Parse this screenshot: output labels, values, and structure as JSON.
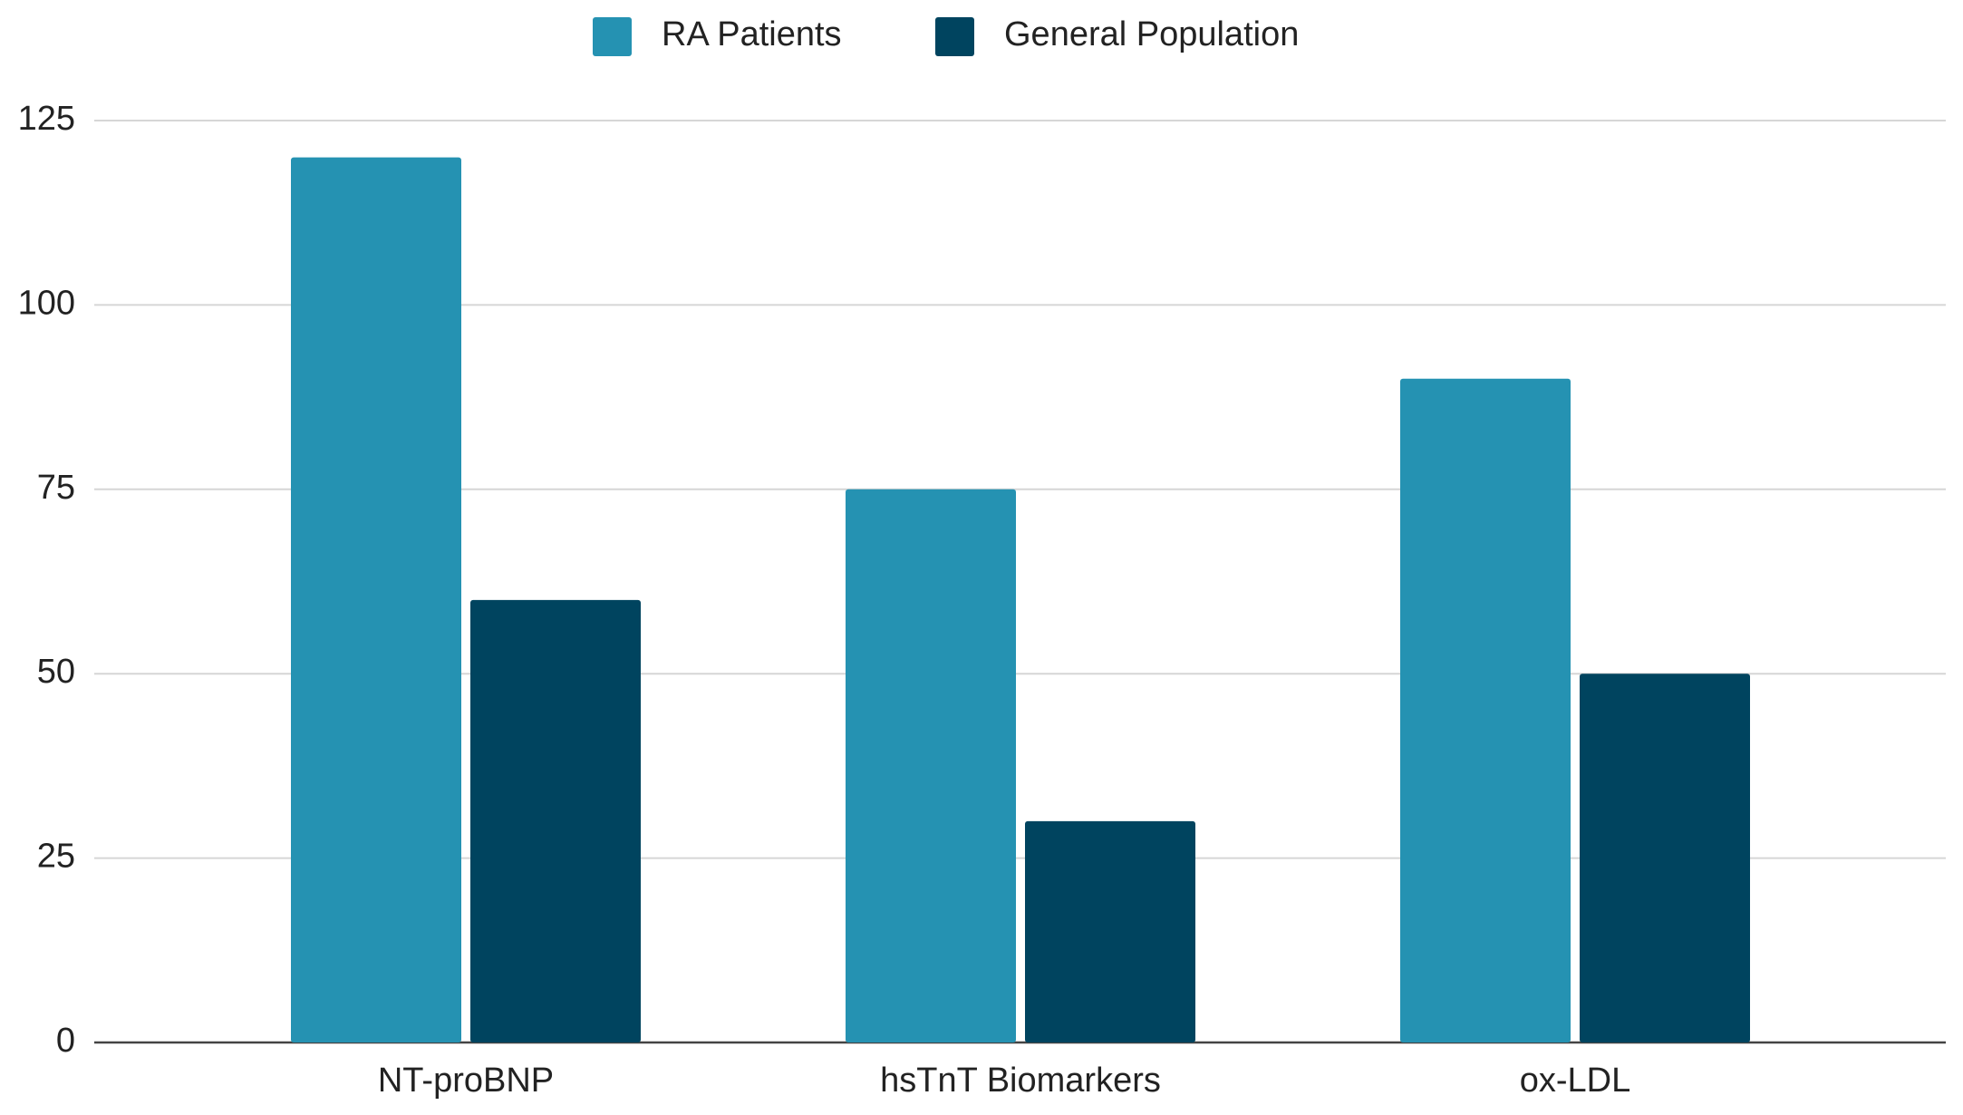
{
  "chart_data": {
    "type": "bar",
    "categories": [
      "NT-proBNP",
      "hsTnT Biomarkers",
      "ox-LDL"
    ],
    "series": [
      {
        "name": "RA Patients",
        "color": "#2592b2",
        "values": [
          120,
          75,
          90
        ]
      },
      {
        "name": "General Population",
        "color": "#00445f",
        "values": [
          60,
          30,
          50
        ]
      }
    ],
    "ylim": [
      0,
      125
    ],
    "yticks": [
      0,
      25,
      50,
      75,
      100,
      125
    ],
    "grid": true
  }
}
